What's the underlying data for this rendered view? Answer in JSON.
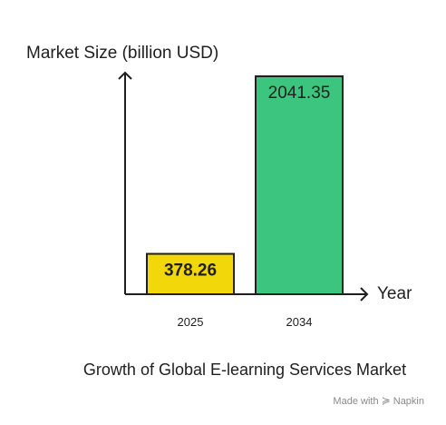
{
  "chart_data": {
    "type": "bar",
    "ylabel": "Market Size (billion USD)",
    "xlabel": "Year",
    "caption": "Growth of Global E-learning Services Market",
    "categories": [
      "2025",
      "2034"
    ],
    "values": [
      378.26,
      2041.35
    ],
    "value_labels": [
      "378.26",
      "2041.35"
    ],
    "bar_colors": [
      "#f2d70a",
      "#3cc57e"
    ],
    "value_label_bold": [
      true,
      false
    ],
    "ylim": [
      0,
      2041.35
    ],
    "grid": false,
    "legend": "none"
  },
  "watermark": {
    "prefix": "Made with",
    "icon": "napkin-icon",
    "brand": "Napkin"
  }
}
